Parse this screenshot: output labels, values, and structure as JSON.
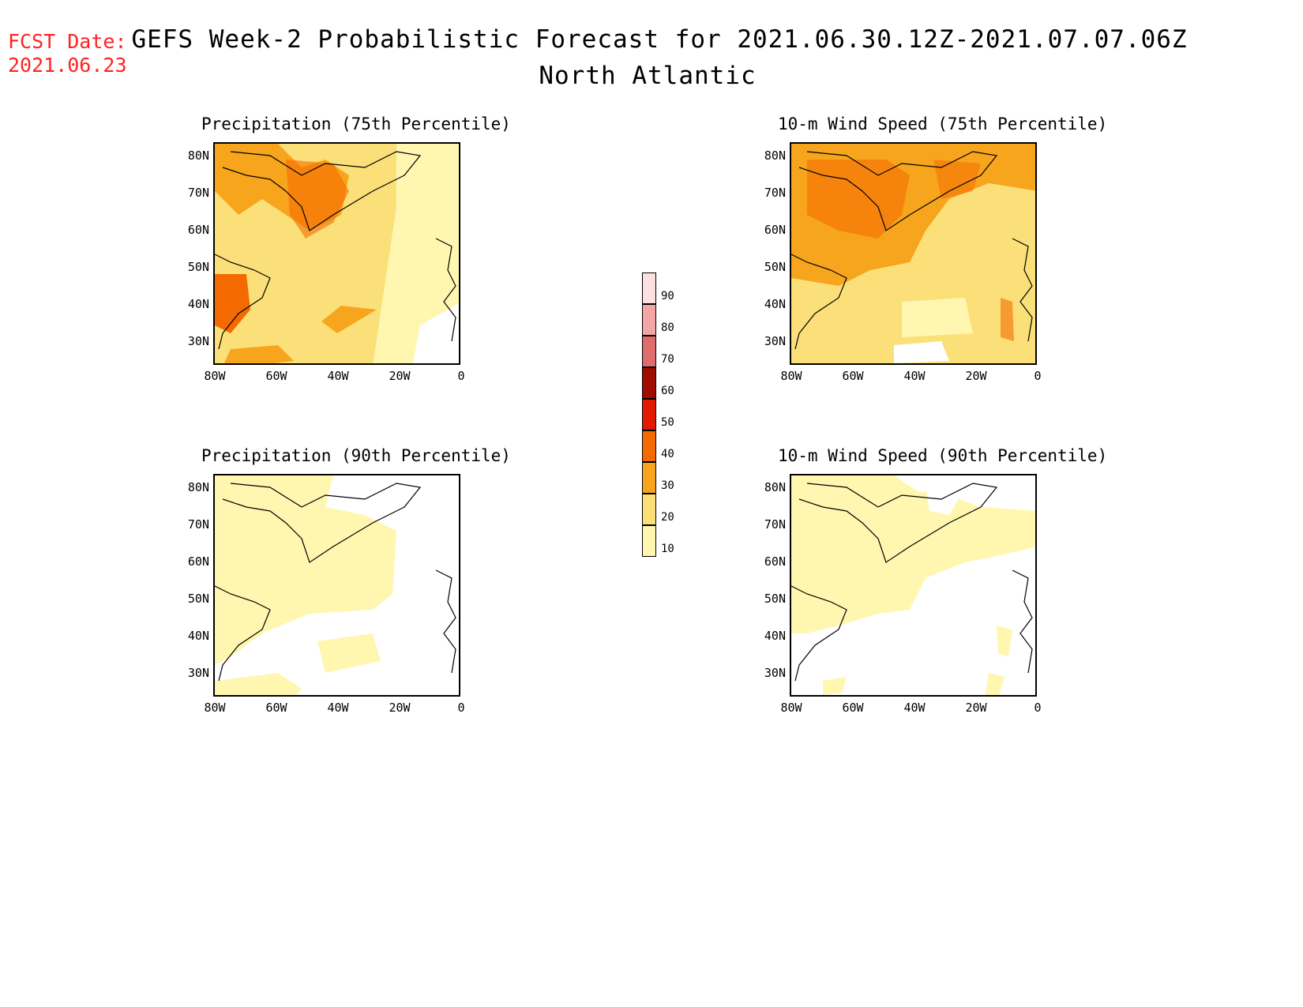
{
  "header": {
    "fcst_label": "FCST Date:",
    "fcst_date": "2021.06.23",
    "title": "GEFS Week-2 Probabilistic Forecast for 2021.06.30.12Z-2021.07.07.06Z",
    "subtitle": "North Atlantic"
  },
  "panels": [
    {
      "title": "Precipitation (75th Percentile)",
      "intensity": "high-precip"
    },
    {
      "title": "10-m Wind Speed (75th Percentile)",
      "intensity": "high-wind"
    },
    {
      "title": "Precipitation (90th Percentile)",
      "intensity": "low-precip"
    },
    {
      "title": "10-m Wind Speed (90th Percentile)",
      "intensity": "low-wind"
    }
  ],
  "axes": {
    "lat_labels": [
      "80N",
      "70N",
      "60N",
      "50N",
      "40N",
      "30N"
    ],
    "lon_labels": [
      "80W",
      "60W",
      "40W",
      "20W",
      "0"
    ]
  },
  "legend": {
    "levels": [
      "10",
      "20",
      "30",
      "40",
      "50",
      "60",
      "70",
      "80",
      "90"
    ],
    "colors": [
      "#fff7b0",
      "#fbe07a",
      "#f7a51c",
      "#f56a00",
      "#e11a00",
      "#a00d00",
      "#e06d6d",
      "#f4a6a6",
      "#fde0e0"
    ]
  }
}
